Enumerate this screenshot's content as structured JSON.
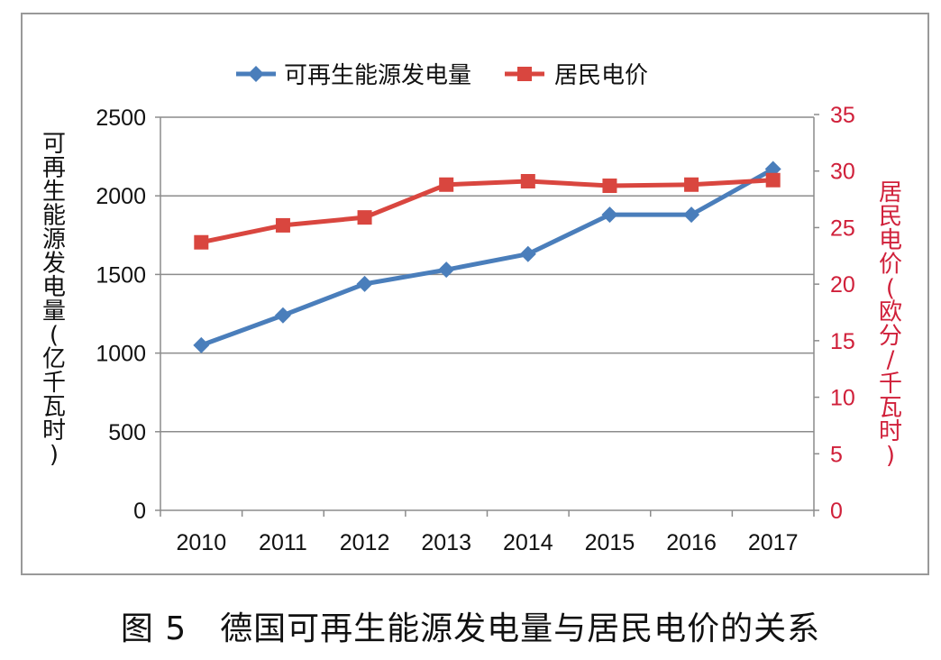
{
  "chart_data": {
    "type": "line",
    "categories": [
      "2010",
      "2011",
      "2012",
      "2013",
      "2014",
      "2015",
      "2016",
      "2017"
    ],
    "series": [
      {
        "name": "可再生能源发电量",
        "axis": "left",
        "color": "#4a7ebb",
        "marker": "diamond",
        "values": [
          1050,
          1240,
          1440,
          1530,
          1630,
          1880,
          1880,
          2170
        ]
      },
      {
        "name": "居民电价",
        "axis": "right",
        "color": "#d9463f",
        "marker": "square",
        "values": [
          23.7,
          25.2,
          25.9,
          28.8,
          29.1,
          28.7,
          28.8,
          29.2
        ]
      }
    ],
    "ylabel": "可再生能源发电量(亿千瓦时)",
    "y2label": "居民电价(欧分/千瓦时)",
    "ylim": [
      0,
      2500
    ],
    "yticks": [
      "0",
      "500",
      "1000",
      "1500",
      "2000",
      "2500"
    ],
    "y2lim": [
      0,
      35
    ],
    "y2ticks": [
      "0",
      "5",
      "10",
      "15",
      "20",
      "25",
      "30",
      "35"
    ],
    "y2_color": "#d0203a",
    "grid": true,
    "legend": "top"
  },
  "caption": "图 5　德国可再生能源发电量与居民电价的关系"
}
